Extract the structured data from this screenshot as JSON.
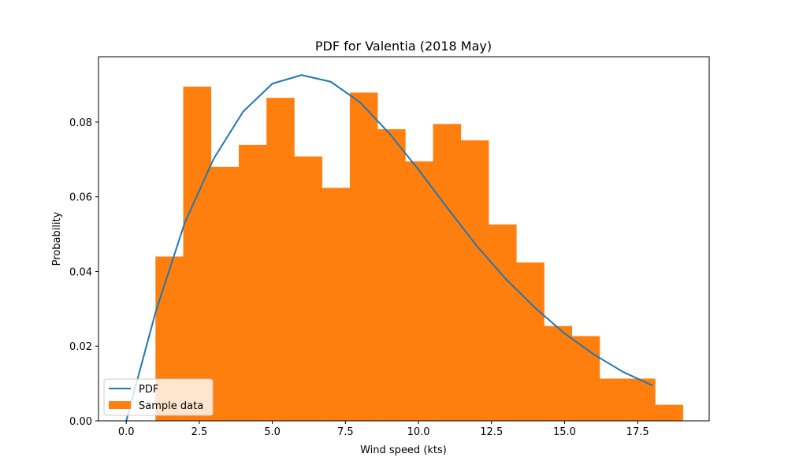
{
  "chart_data": {
    "type": "bar",
    "title": "PDF for Valentia (2018 May)",
    "xlabel": "Wind speed (kts)",
    "ylabel": "Probability",
    "xlim": [
      -0.95,
      19.95
    ],
    "ylim": [
      0,
      0.0975
    ],
    "x_ticks": [
      0.0,
      2.5,
      5.0,
      7.5,
      10.0,
      12.5,
      15.0,
      17.5
    ],
    "x_tick_labels": [
      "0.0",
      "2.5",
      "5.0",
      "7.5",
      "10.0",
      "12.5",
      "15.0",
      "17.5"
    ],
    "y_ticks": [
      0.0,
      0.02,
      0.04,
      0.06,
      0.08
    ],
    "y_tick_labels": [
      "0.00",
      "0.02",
      "0.04",
      "0.06",
      "0.08"
    ],
    "grid": false,
    "legend_position": "lower-left",
    "histogram": {
      "name": "Sample data",
      "color": "#ff7f0e",
      "bin_width": 0.95,
      "bin_starts": [
        1.0,
        1.95,
        2.9,
        3.85,
        4.8,
        5.75,
        6.7,
        7.65,
        8.6,
        9.55,
        10.5,
        11.45,
        12.4,
        13.35,
        14.3,
        15.25,
        16.2,
        17.15,
        18.1
      ],
      "values": [
        0.044,
        0.0895,
        0.068,
        0.0739,
        0.0865,
        0.0708,
        0.0624,
        0.0879,
        0.0781,
        0.0695,
        0.0795,
        0.0751,
        0.0526,
        0.0424,
        0.0254,
        0.0227,
        0.0113,
        0.0113,
        0.0043
      ]
    },
    "line": {
      "name": "PDF",
      "color": "#1f77b4",
      "x": [
        0,
        1,
        2,
        3,
        4,
        5,
        6,
        7,
        8,
        9,
        10,
        11,
        12,
        13,
        14,
        15,
        16,
        17,
        18
      ],
      "y": [
        0.0,
        0.029,
        0.053,
        0.0703,
        0.0828,
        0.0903,
        0.0926,
        0.0908,
        0.0853,
        0.077,
        0.0673,
        0.0569,
        0.0468,
        0.0379,
        0.0302,
        0.0234,
        0.0178,
        0.0131,
        0.0095
      ]
    }
  }
}
